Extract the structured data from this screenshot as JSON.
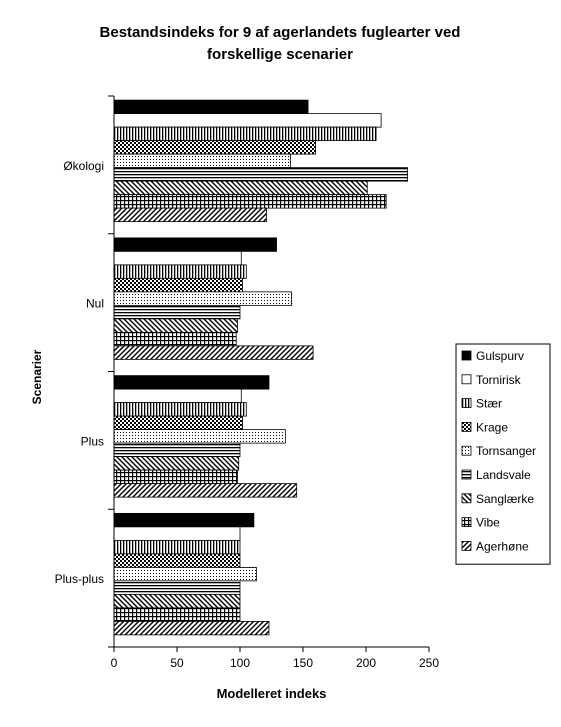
{
  "chart_data": {
    "type": "bar",
    "orientation": "horizontal",
    "title_line1": "Bestandsindeks for 9 af agerlandets fuglearter ved",
    "title_line2": "forskellige scenarier",
    "xlabel": "Modelleret indeks",
    "ylabel": "Scenarier",
    "xlim": [
      0,
      250
    ],
    "xticks": [
      "0",
      "50",
      "100",
      "150",
      "200",
      "250"
    ],
    "grid": false,
    "legend_position": "right",
    "categories": [
      "Økologi",
      "Nul",
      "Plus",
      "Plus-plus"
    ],
    "series": [
      {
        "name": "Gulspurv",
        "pattern": "solid",
        "values": [
          154,
          129,
          123,
          111
        ]
      },
      {
        "name": "Tornirisk",
        "pattern": "white",
        "values": [
          212,
          101,
          101,
          100
        ]
      },
      {
        "name": "Stær",
        "pattern": "vlines",
        "values": [
          208,
          105,
          105,
          100
        ]
      },
      {
        "name": "Krage",
        "pattern": "checker",
        "values": [
          160,
          102,
          102,
          100
        ]
      },
      {
        "name": "Tornsanger",
        "pattern": "dots",
        "values": [
          140,
          141,
          136,
          113
        ]
      },
      {
        "name": "Landsvale",
        "pattern": "hlines",
        "values": [
          233,
          100,
          100,
          100
        ]
      },
      {
        "name": "Sanglærke",
        "pattern": "diag_back",
        "values": [
          201,
          98,
          99,
          100
        ]
      },
      {
        "name": "Vibe",
        "pattern": "grid",
        "values": [
          216,
          97,
          98,
          100
        ]
      },
      {
        "name": "Agerhøne",
        "pattern": "diag_fwd",
        "values": [
          121,
          158,
          145,
          123
        ]
      }
    ]
  }
}
